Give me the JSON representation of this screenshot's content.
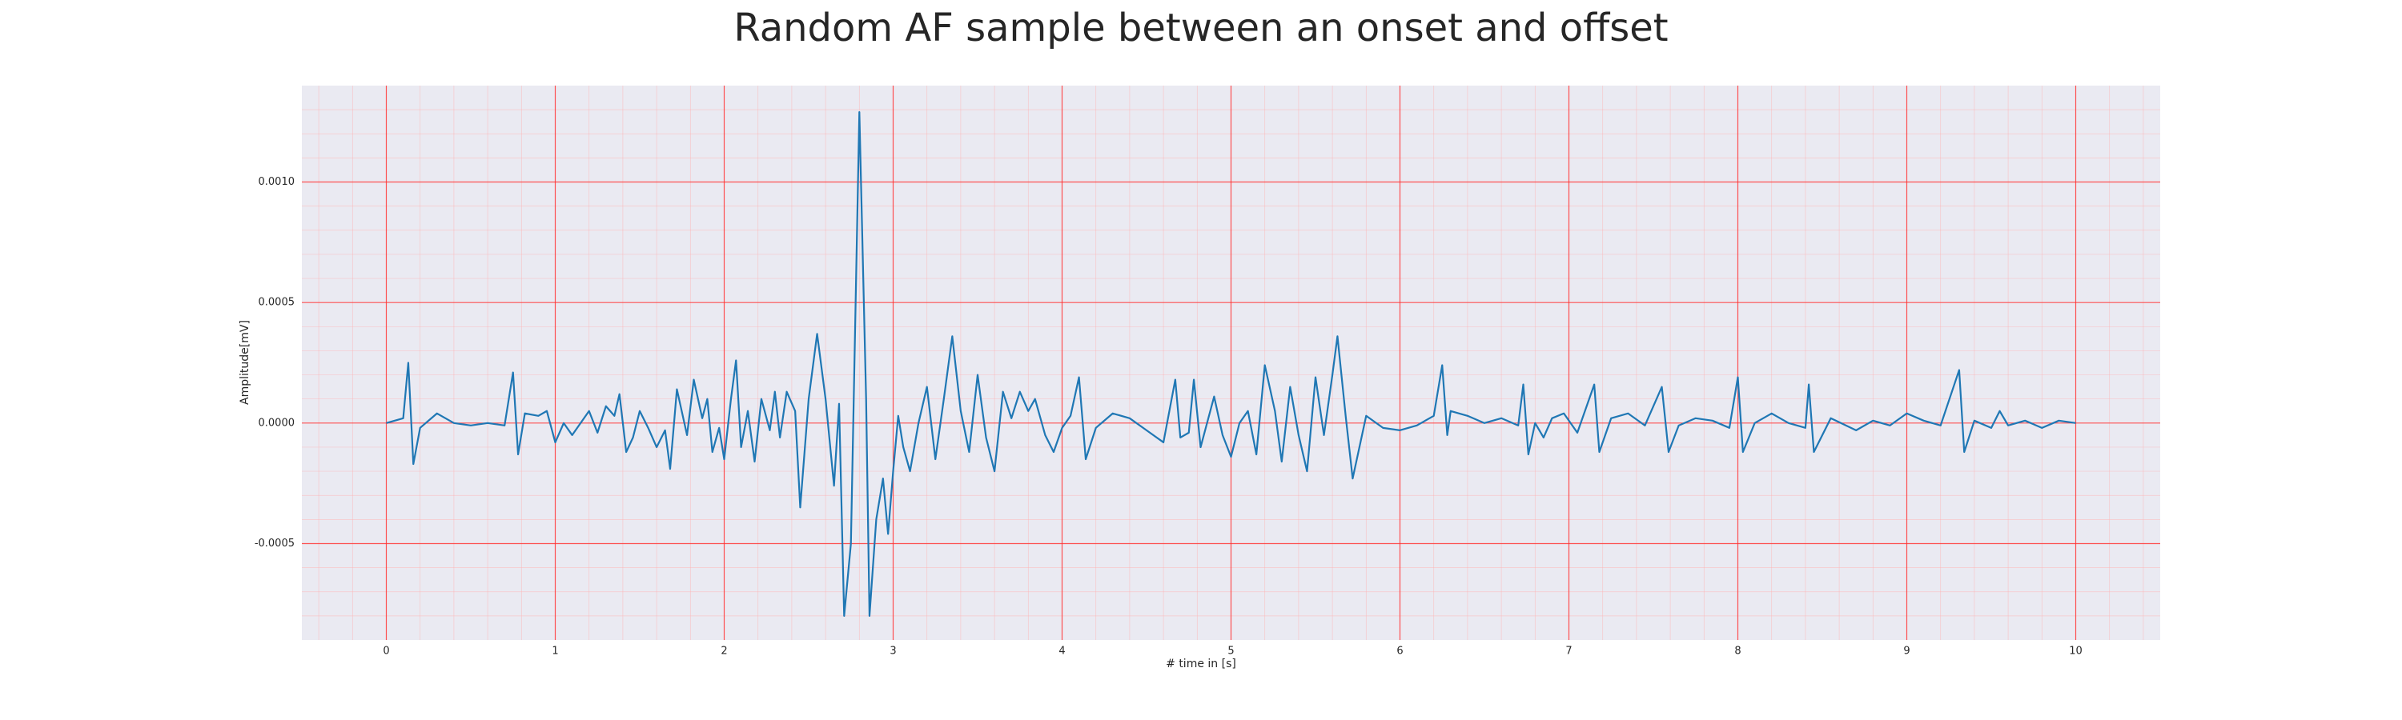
{
  "chart_data": {
    "type": "line",
    "title": "Random AF sample between an onset and offset",
    "xlabel": "# time in [s]",
    "ylabel": "Amplitude[mV]",
    "color": "#1f77b4",
    "grid": true,
    "minor_grid": true,
    "xlim": [
      -0.5,
      10.5
    ],
    "ylim": [
      -0.0009,
      0.0014
    ],
    "xticks": [
      0,
      1,
      2,
      3,
      4,
      5,
      6,
      7,
      8,
      9,
      10
    ],
    "yticks": [
      -0.0005,
      {
        "value": 0,
        "label": "0.0000"
      },
      0.0005,
      {
        "value": 0.001,
        "label": "0.0010"
      }
    ],
    "x": [
      0,
      0.1,
      0.13,
      0.16,
      0.2,
      0.3,
      0.4,
      0.5,
      0.6,
      0.7,
      0.75,
      0.78,
      0.82,
      0.9,
      0.95,
      1.0,
      1.05,
      1.1,
      1.2,
      1.25,
      1.3,
      1.35,
      1.38,
      1.42,
      1.46,
      1.5,
      1.55,
      1.6,
      1.65,
      1.68,
      1.72,
      1.78,
      1.82,
      1.87,
      1.9,
      1.93,
      1.97,
      2.0,
      2.04,
      2.07,
      2.1,
      2.14,
      2.18,
      2.22,
      2.27,
      2.3,
      2.33,
      2.37,
      2.42,
      2.45,
      2.5,
      2.55,
      2.6,
      2.65,
      2.68,
      2.71,
      2.75,
      2.8,
      2.84,
      2.86,
      2.9,
      2.94,
      2.97,
      3.0,
      3.03,
      3.06,
      3.1,
      3.15,
      3.2,
      3.25,
      3.3,
      3.35,
      3.4,
      3.45,
      3.5,
      3.55,
      3.6,
      3.65,
      3.7,
      3.75,
      3.8,
      3.84,
      3.9,
      3.95,
      4.0,
      4.05,
      4.1,
      4.14,
      4.2,
      4.3,
      4.4,
      4.5,
      4.6,
      4.67,
      4.7,
      4.75,
      4.78,
      4.82,
      4.9,
      4.95,
      5.0,
      5.05,
      5.1,
      5.15,
      5.2,
      5.26,
      5.3,
      5.35,
      5.4,
      5.45,
      5.5,
      5.55,
      5.6,
      5.63,
      5.68,
      5.72,
      5.76,
      5.8,
      5.9,
      6.0,
      6.1,
      6.2,
      6.25,
      6.28,
      6.3,
      6.4,
      6.5,
      6.6,
      6.7,
      6.73,
      6.76,
      6.8,
      6.85,
      6.9,
      6.97,
      7.05,
      7.15,
      7.18,
      7.25,
      7.35,
      7.45,
      7.55,
      7.59,
      7.65,
      7.75,
      7.85,
      7.95,
      8.0,
      8.03,
      8.1,
      8.2,
      8.3,
      8.4,
      8.42,
      8.45,
      8.55,
      8.7,
      8.8,
      8.9,
      9.0,
      9.1,
      9.2,
      9.31,
      9.34,
      9.4,
      9.5,
      9.55,
      9.6,
      9.7,
      9.8,
      9.9,
      10.0
    ],
    "values": [
      0,
      2e-05,
      0.00025,
      -0.00017,
      -2e-05,
      4e-05,
      0,
      -1e-05,
      0,
      -1e-05,
      0.00021,
      -0.00013,
      4e-05,
      3e-05,
      5e-05,
      -8e-05,
      0,
      -5e-05,
      5e-05,
      -4e-05,
      7e-05,
      3e-05,
      0.00012,
      -0.00012,
      -6e-05,
      5e-05,
      -2e-05,
      -0.0001,
      -3e-05,
      -0.00019,
      0.00014,
      -5e-05,
      0.00018,
      2e-05,
      0.0001,
      -0.00012,
      -2e-05,
      -0.00015,
      0.0001,
      0.00026,
      -0.0001,
      5e-05,
      -0.00016,
      0.0001,
      -3e-05,
      0.00013,
      -6e-05,
      0.00013,
      5e-05,
      -0.00035,
      0.0001,
      0.00037,
      0.0001,
      -0.00026,
      8e-05,
      -0.0008,
      -0.0005,
      0.00129,
      0.0001,
      -0.0008,
      -0.0004,
      -0.00023,
      -0.00046,
      -0.0002,
      3e-05,
      -0.0001,
      -0.0002,
      0,
      0.00015,
      -0.00015,
      0.0001,
      0.00036,
      5e-05,
      -0.00012,
      0.0002,
      -6e-05,
      -0.0002,
      0.00013,
      2e-05,
      0.00013,
      5e-05,
      0.0001,
      -5e-05,
      -0.00012,
      -2e-05,
      3e-05,
      0.00019,
      -0.00015,
      -2e-05,
      4e-05,
      2e-05,
      -3e-05,
      -8e-05,
      0.00018,
      -6e-05,
      -4e-05,
      0.00018,
      -0.0001,
      0.00011,
      -5e-05,
      -0.00014,
      0,
      5e-05,
      -0.00013,
      0.00024,
      5e-05,
      -0.00016,
      0.00015,
      -5e-05,
      -0.0002,
      0.00019,
      -5e-05,
      0.0002,
      0.00036,
      2e-05,
      -0.00023,
      -0.0001,
      3e-05,
      -2e-05,
      -3e-05,
      -1e-05,
      3e-05,
      0.00024,
      -5e-05,
      5e-05,
      3e-05,
      0,
      2e-05,
      -1e-05,
      0.00016,
      -0.00013,
      0,
      -6e-05,
      2e-05,
      4e-05,
      -4e-05,
      0.00016,
      -0.00012,
      2e-05,
      4e-05,
      -1e-05,
      0.00015,
      -0.00012,
      -1e-05,
      2e-05,
      1e-05,
      -2e-05,
      0.00019,
      -0.00012,
      0,
      4e-05,
      0,
      -2e-05,
      0.00016,
      -0.00012,
      2e-05,
      -3e-05,
      1e-05,
      -1e-05,
      4e-05,
      1e-05,
      -1e-05,
      0.00022,
      -0.00012,
      1e-05,
      -2e-05,
      5e-05,
      -1e-05,
      1e-05,
      -2e-05,
      1e-05,
      0
    ]
  }
}
